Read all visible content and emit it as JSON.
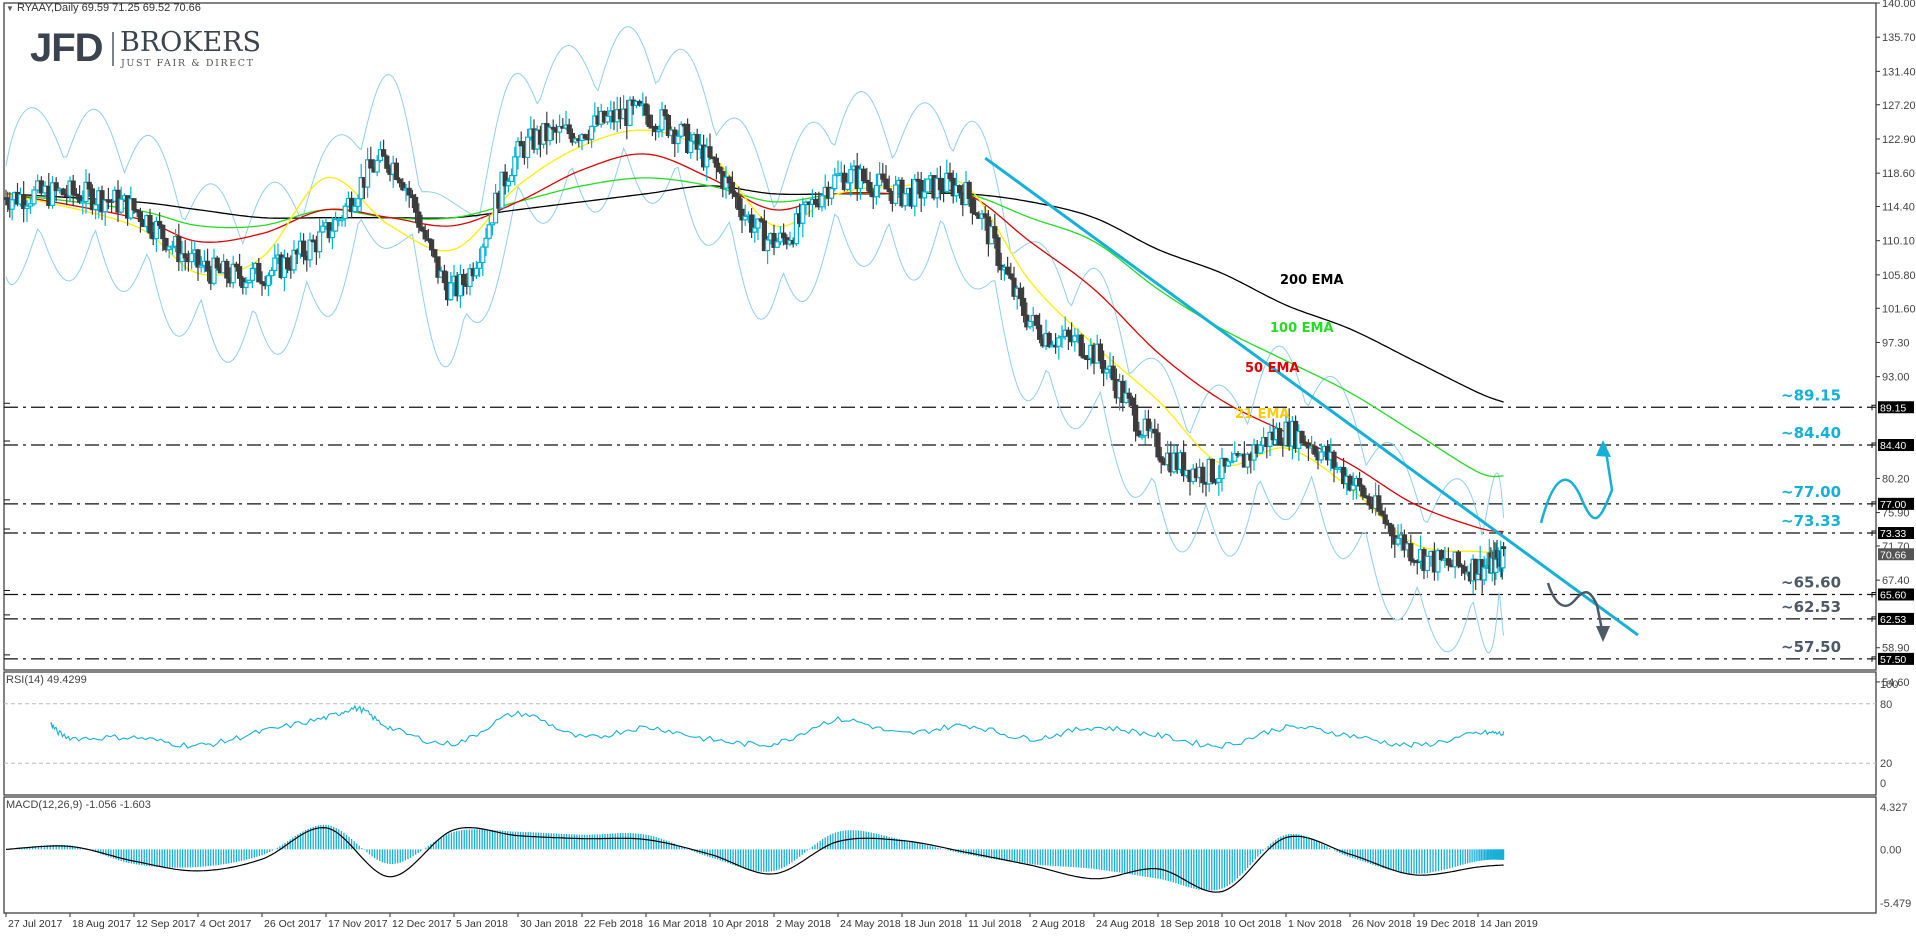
{
  "header": {
    "symbol_line": "RYAAY,Daily  69.59 71.25 69.52 70.66",
    "rsi_label": "RSI(14) 49.4299",
    "macd_label": "MACD(12,26,9) -1.056 -1.603"
  },
  "logo": {
    "brand": "JFD",
    "name": "BROKERS",
    "tagline": "JUST FAIR & DIRECT"
  },
  "colors": {
    "bull_candle": "#00b4d8",
    "bear_candle": "#3c3c3c",
    "ema21": "#ffee00",
    "ema50": "#e00000",
    "ema100": "#22dd22",
    "ema200": "#000000",
    "bollinger": "#8fcfee",
    "trendline": "#14b0d8",
    "level_label_blue": "#14b0d8",
    "level_label_grey": "#4d5966",
    "rsi_line": "#14b0d8",
    "macd_hist": "#14b0d8",
    "macd_signal": "#000000"
  },
  "chart_data": [
    {
      "type": "line",
      "title": "RYAAY, Daily",
      "subtitle": "O 69.59 H 71.25 L 69.52 C 70.66",
      "xlabel": "",
      "ylabel": "",
      "ylim": [
        54.6,
        140.0
      ],
      "y_ticks": [
        "140.00",
        "135.70",
        "131.40",
        "127.20",
        "122.90",
        "118.60",
        "114.40",
        "110.10",
        "105.80",
        "101.60",
        "97.30",
        "93.00",
        "89.15",
        "84.40",
        "80.20",
        "77.00",
        "75.90",
        "73.33",
        "71.70",
        "70.66",
        "67.40",
        "65.60",
        "62.53",
        "58.90",
        "57.50",
        "54.60"
      ],
      "x_ticks": [
        "27 Jul 2017",
        "18 Aug 2017",
        "12 Sep 2017",
        "4 Oct 2017",
        "26 Oct 2017",
        "17 Nov 2017",
        "12 Dec 2017",
        "5 Jan 2018",
        "30 Jan 2018",
        "22 Feb 2018",
        "16 Mar 2018",
        "10 Apr 2018",
        "2 May 2018",
        "24 May 2018",
        "18 Jun 2018",
        "11 Jul 2018",
        "2 Aug 2018",
        "24 Aug 2018",
        "18 Sep 2018",
        "10 Oct 2018",
        "1 Nov 2018",
        "26 Nov 2018",
        "19 Dec 2018",
        "14 Jan 2019"
      ],
      "series": [
        {
          "name": "Close (approx.)",
          "x": [
            0,
            1,
            2,
            3,
            4,
            5,
            6,
            7,
            8,
            9,
            10,
            11,
            12,
            13,
            14,
            15,
            16,
            17,
            18,
            19,
            20,
            21,
            22,
            23,
            23.4
          ],
          "values": [
            115.5,
            116,
            114,
            107,
            106,
            111,
            120,
            104,
            121,
            124,
            126,
            120,
            110,
            118,
            116,
            116,
            100,
            96,
            84,
            81,
            86,
            80,
            71,
            69,
            70.66
          ]
        },
        {
          "name": "21 EMA",
          "x": [
            0,
            2,
            3,
            4,
            5,
            6,
            7,
            8,
            9,
            10,
            11,
            12,
            13,
            14,
            15,
            16,
            17,
            18,
            19,
            20,
            21,
            22,
            23,
            23.4
          ],
          "values": [
            116,
            112,
            106,
            108,
            118,
            112,
            109,
            117,
            122,
            124,
            121,
            112,
            116,
            117,
            117,
            105,
            97,
            90,
            82,
            84,
            79,
            72,
            71,
            71
          ]
        },
        {
          "name": "50 EMA",
          "x": [
            0,
            2,
            3,
            4,
            5,
            6,
            7,
            8,
            9,
            10,
            11,
            12,
            13,
            14,
            15,
            16,
            17,
            18,
            19,
            20,
            21,
            22,
            23,
            23.4
          ],
          "values": [
            116,
            113,
            110,
            111,
            114,
            113,
            112,
            115,
            119,
            121,
            118,
            114,
            116,
            116,
            116,
            110,
            104,
            96,
            90,
            86,
            82,
            77,
            74,
            73.5
          ]
        },
        {
          "name": "100 EMA",
          "x": [
            0,
            2,
            3,
            4,
            5,
            6,
            7,
            8,
            9,
            10,
            11,
            12,
            13,
            14,
            15,
            16,
            17,
            18,
            19,
            20,
            21,
            22,
            23,
            23.4
          ],
          "values": [
            116,
            114,
            112,
            112,
            114,
            113,
            113,
            115,
            117,
            118,
            117,
            115,
            116,
            116,
            116,
            113,
            110,
            104,
            99,
            95,
            91,
            86,
            81,
            80.5
          ]
        },
        {
          "name": "200 EMA",
          "x": [
            0,
            2,
            3,
            4,
            5,
            6,
            7,
            8,
            9,
            10,
            11,
            12,
            13,
            14,
            15,
            16,
            17,
            18,
            19,
            20,
            21,
            22,
            23,
            23.4
          ],
          "values": [
            116,
            115,
            114,
            113,
            113,
            113,
            113,
            114,
            115,
            116,
            117,
            116,
            116,
            116,
            116,
            115,
            113,
            109,
            106,
            102,
            99,
            95,
            91,
            89.8
          ]
        }
      ],
      "annotations": [
        {
          "text": "200 EMA",
          "color": "#000000"
        },
        {
          "text": "100 EMA",
          "color": "#22dd22"
        },
        {
          "text": "50 EMA",
          "color": "#e00000"
        },
        {
          "text": "21 EMA",
          "color": "#ffcc00"
        }
      ],
      "horizontal_levels": [
        {
          "label": "~89.15",
          "value": 89.15,
          "color": "#14b0d8"
        },
        {
          "label": "~84.40",
          "value": 84.4,
          "color": "#14b0d8"
        },
        {
          "label": "~77.00",
          "value": 77.0,
          "color": "#14b0d8"
        },
        {
          "label": "~73.33",
          "value": 73.33,
          "color": "#14b0d8"
        },
        {
          "label": "~65.60",
          "value": 65.6,
          "color": "#4d5966"
        },
        {
          "label": "~62.53",
          "value": 62.53,
          "color": "#4d5966"
        },
        {
          "label": "~57.50",
          "value": 57.5,
          "color": "#4d5966"
        }
      ],
      "price_tags": [
        "89.15",
        "84.40",
        "77.00",
        "73.33",
        "70.66",
        "65.60",
        "62.53",
        "57.50"
      ],
      "trendline": {
        "from": {
          "x": 15.3,
          "price": 120.5
        },
        "to": {
          "x": 25.5,
          "price": 60.5
        }
      },
      "scenarios": [
        {
          "name": "bullish",
          "color": "#14b0d8",
          "target": 84.4
        },
        {
          "name": "bearish",
          "color": "#4d5966",
          "target": 57.5
        }
      ],
      "grid": false,
      "legend": "none"
    },
    {
      "type": "line",
      "title": "RSI(14) 49.4299",
      "ylim": [
        0,
        100
      ],
      "y_ticks": [
        "100",
        "80",
        "20",
        "0"
      ],
      "reference_lines": [
        80,
        20
      ],
      "series": [
        {
          "name": "RSI(14)",
          "x": [
            0.7,
            1,
            2,
            3,
            4,
            5,
            5.5,
            6,
            7,
            8,
            9,
            10,
            11,
            12,
            13,
            14,
            15,
            16,
            17,
            18,
            19,
            20,
            21,
            22,
            23,
            23.4
          ],
          "values": [
            60,
            46,
            46,
            38,
            52,
            66,
            75,
            56,
            40,
            70,
            46,
            56,
            44,
            40,
            64,
            50,
            58,
            45,
            56,
            48,
            38,
            56,
            48,
            38,
            50,
            49.4
          ]
        }
      ]
    },
    {
      "type": "bar",
      "title": "MACD(12,26,9) -1.056 -1.603",
      "ylim": [
        -5.479,
        4.327
      ],
      "y_ticks": [
        "4.327",
        "0.00",
        "-5.479"
      ],
      "series": [
        {
          "name": "MACD histogram",
          "x": [
            0,
            1,
            2,
            3,
            4,
            5,
            6,
            7,
            8,
            9,
            10,
            11,
            12,
            13,
            14,
            15,
            16,
            17,
            18,
            19,
            20,
            21,
            22,
            23,
            23.4
          ],
          "values": [
            0,
            0.4,
            -1.5,
            -1.8,
            -0.6,
            2.5,
            -1.5,
            1.8,
            1.8,
            1.5,
            1.5,
            -0.8,
            -2.2,
            1.8,
            1.0,
            -0.5,
            -1.5,
            -2.0,
            -3.0,
            -4.0,
            1.5,
            -0.8,
            -2.5,
            -1.2,
            -1.06
          ]
        },
        {
          "name": "Signal",
          "x": [
            0,
            1,
            2,
            3,
            4,
            5,
            6,
            7,
            8,
            9,
            10,
            11,
            12,
            13,
            14,
            15,
            16,
            17,
            18,
            19,
            20,
            21,
            22,
            23,
            23.4
          ],
          "values": [
            0,
            0.3,
            -1.2,
            -2.2,
            -1.0,
            2.2,
            -2.8,
            2.0,
            1.4,
            1.1,
            1.0,
            -0.5,
            -2.5,
            0.8,
            0.9,
            -0.3,
            -1.6,
            -3.0,
            -2.0,
            -4.3,
            1.2,
            -0.5,
            -2.6,
            -1.8,
            -1.6
          ]
        }
      ]
    }
  ]
}
